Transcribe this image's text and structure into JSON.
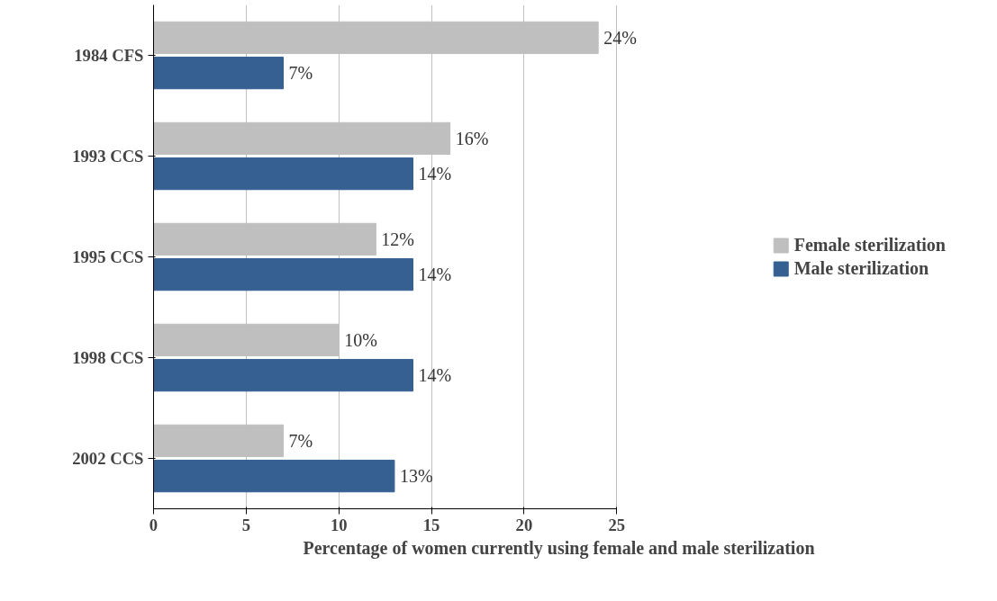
{
  "chart_data": {
    "type": "bar",
    "orientation": "horizontal",
    "xlabel": "Percentage of women currently using female and male sterilization",
    "categories": [
      "1984 CFS",
      "1993 CCS",
      "1995 CCS",
      "1998 CCS",
      "2002 CCS"
    ],
    "series": [
      {
        "name": "Female sterilization",
        "color": "#bfbfbf",
        "values": [
          24,
          16,
          12,
          10,
          7
        ],
        "value_labels": [
          "24%",
          "16%",
          "12%",
          "10%",
          "7%"
        ]
      },
      {
        "name": "Male sterilization",
        "color": "#376092",
        "values": [
          7,
          14,
          14,
          14,
          13
        ],
        "value_labels": [
          "7%",
          "14%",
          "14%",
          "14%",
          "13%"
        ]
      }
    ],
    "xlim": [
      0,
      25
    ],
    "xticks": [
      0,
      5,
      10,
      15,
      20,
      25
    ],
    "grid": "x",
    "legend": "right"
  }
}
